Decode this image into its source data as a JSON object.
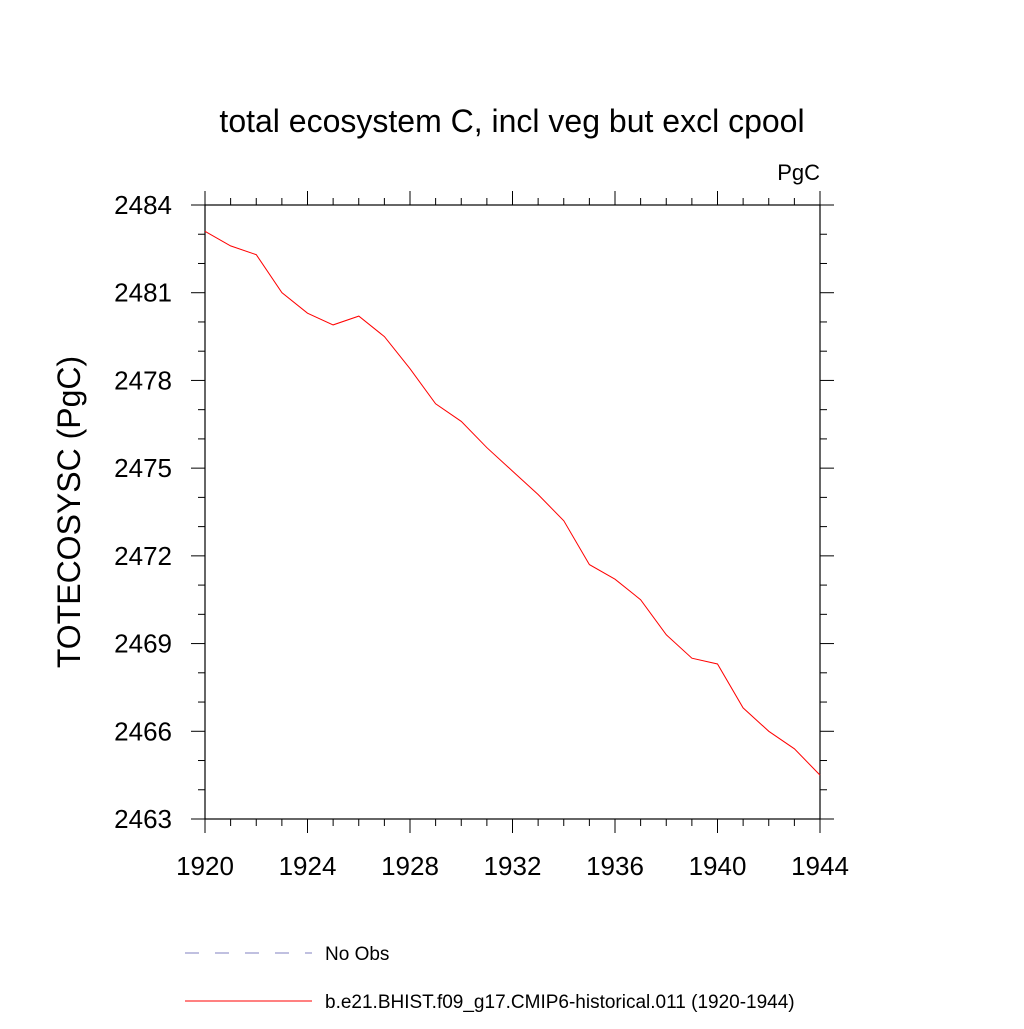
{
  "chart_data": {
    "type": "line",
    "title": "total ecosystem C, incl veg but excl cpool",
    "units_label": "PgC",
    "ylabel": "TOTECOSYSC  (PgC)",
    "xlabel": "",
    "xlim": [
      1920,
      1944
    ],
    "ylim": [
      2463,
      2484
    ],
    "x_ticks": [
      1920,
      1924,
      1928,
      1932,
      1936,
      1940,
      1944
    ],
    "x_tick_labels": [
      "1920",
      "1924",
      "1928",
      "1932",
      "1936",
      "1940",
      "1944"
    ],
    "y_ticks": [
      2463,
      2466,
      2469,
      2472,
      2475,
      2478,
      2481,
      2484
    ],
    "y_tick_labels": [
      "2463",
      "2466",
      "2469",
      "2472",
      "2475",
      "2478",
      "2481",
      "2484"
    ],
    "grid": false,
    "series": [
      {
        "name": "b.e21.BHIST.f09_g17.CMIP6-historical.011 (1920-1944)",
        "color": "#ff0000",
        "x": [
          1920,
          1921,
          1922,
          1923,
          1924,
          1925,
          1926,
          1927,
          1928,
          1929,
          1930,
          1931,
          1932,
          1933,
          1934,
          1935,
          1936,
          1937,
          1938,
          1939,
          1940,
          1941,
          1942,
          1943,
          1944
        ],
        "y": [
          2483.1,
          2482.6,
          2482.3,
          2481.0,
          2480.3,
          2479.9,
          2480.2,
          2479.5,
          2478.4,
          2477.2,
          2476.6,
          2475.7,
          2474.9,
          2474.1,
          2473.2,
          2471.7,
          2471.2,
          2470.5,
          2469.3,
          2468.5,
          2468.3,
          2466.8,
          2466.0,
          2465.4,
          2464.5
        ]
      }
    ],
    "legend": {
      "placement": "bottom",
      "entries": [
        {
          "label": "No Obs",
          "color": "#8080c0",
          "style": "dashed"
        },
        {
          "label": "b.e21.BHIST.f09_g17.CMIP6-historical.011 (1920-1944)",
          "color": "#ff0000",
          "style": "solid"
        }
      ]
    }
  }
}
